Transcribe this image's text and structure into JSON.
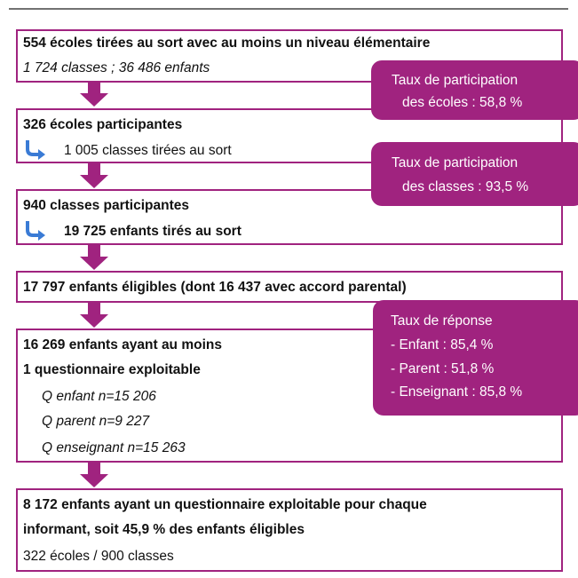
{
  "boxes": [
    {
      "lines": [
        "554 écoles tirées au sort avec au moins un niveau élémentaire",
        "1 724 classes ; 36 486 enfants"
      ]
    },
    {
      "lines": [
        "326 écoles participantes",
        "1 005 classes tirées au sort"
      ]
    },
    {
      "lines": [
        "940 classes participantes",
        "19 725 enfants tirés au sort"
      ]
    },
    {
      "lines": [
        "17 797 enfants éligibles (dont 16 437 avec accord parental)"
      ]
    },
    {
      "lines": [
        "16 269 enfants ayant au moins",
        "1 questionnaire exploitable",
        "Q enfant n=15 206",
        "Q parent n=9 227",
        "Q enseignant n=15 263"
      ]
    },
    {
      "lines": [
        "8 172 enfants ayant un questionnaire exploitable pour chaque",
        "informant, soit 45,9 % des enfants éligibles",
        "322 écoles / 900 classes"
      ]
    }
  ],
  "callouts": [
    {
      "lines": [
        "Taux de participation",
        "des écoles : 58,8 %"
      ]
    },
    {
      "lines": [
        "Taux de participation",
        "des classes : 93,5 %"
      ]
    },
    {
      "lines": [
        "Taux de réponse",
        "- Enfant : 85,4 %",
        "- Parent : 51,8 %",
        "- Enseignant : 85,8 %"
      ]
    }
  ]
}
